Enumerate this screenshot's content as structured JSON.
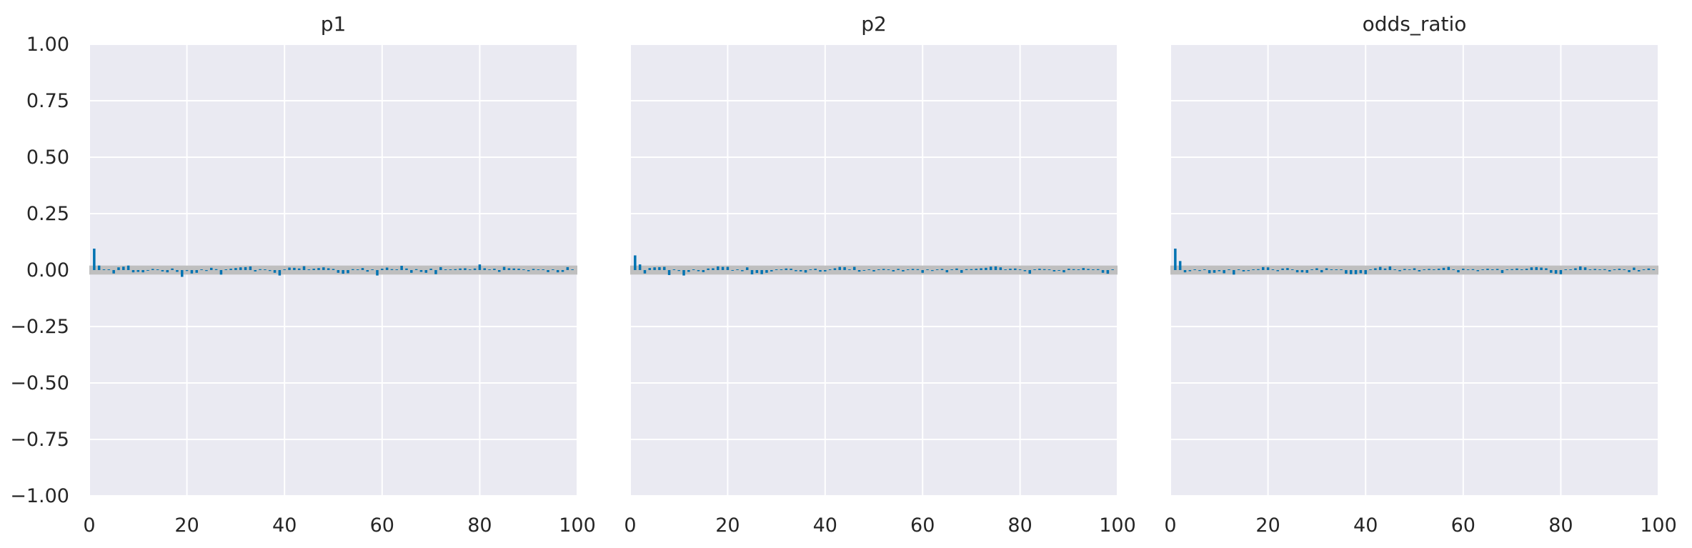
{
  "chart_data": [
    {
      "type": "bar",
      "title": "p1",
      "xlabel": "",
      "ylabel": "",
      "xlim": [
        0,
        100
      ],
      "ylim": [
        -1,
        1
      ],
      "band": [
        -0.02,
        0.02
      ],
      "x_ticks": [
        "0",
        "20",
        "40",
        "60",
        "80",
        "100"
      ],
      "y_ticks": [
        "1.00",
        "0.75",
        "0.50",
        "0.25",
        "0.00",
        "−0.25",
        "−0.50",
        "−0.75",
        "−1.00"
      ],
      "grid": true,
      "lags": [
        1,
        2,
        3,
        4,
        5,
        6,
        7,
        8,
        9,
        10,
        11,
        12,
        13,
        14,
        15,
        16,
        17,
        18,
        19,
        20,
        21,
        22,
        23,
        24,
        25,
        26,
        27,
        28,
        29,
        30,
        31,
        32,
        33,
        34,
        35,
        36,
        37,
        38,
        39,
        40,
        41,
        42,
        43,
        44,
        45,
        46,
        47,
        48,
        49,
        50,
        51,
        52,
        53,
        54,
        55,
        56,
        57,
        58,
        59,
        60,
        61,
        62,
        63,
        64,
        65,
        66,
        67,
        68,
        69,
        70,
        71,
        72,
        73,
        74,
        75,
        76,
        77,
        78,
        79,
        80,
        81,
        82,
        83,
        84,
        85,
        86,
        87,
        88,
        89,
        90,
        91,
        92,
        93,
        94,
        95,
        96,
        97,
        98,
        99
      ],
      "values": [
        0.095,
        0.02,
        0.0,
        0.0,
        -0.015,
        0.012,
        0.015,
        0.02,
        -0.01,
        -0.008,
        -0.01,
        -0.002,
        0.005,
        0.0,
        -0.006,
        -0.01,
        0.007,
        -0.008,
        -0.03,
        -0.004,
        -0.015,
        -0.012,
        0.0,
        -0.004,
        0.01,
        0.004,
        -0.02,
        0.0,
        0.006,
        0.009,
        0.012,
        0.013,
        0.016,
        -0.006,
        0.004,
        0.0,
        -0.004,
        -0.012,
        -0.024,
        0.0,
        0.011,
        0.01,
        0.007,
        0.017,
        0.0,
        0.006,
        0.009,
        0.012,
        0.008,
        0.005,
        -0.012,
        -0.016,
        -0.014,
        0.004,
        0.0,
        0.009,
        -0.007,
        0.0,
        -0.024,
        0.006,
        0.011,
        0.004,
        0.0,
        0.019,
        0.007,
        -0.012,
        0.004,
        -0.008,
        -0.012,
        0.006,
        -0.018,
        0.013,
        0.0,
        0.002,
        0.004,
        0.007,
        0.008,
        0.0,
        0.007,
        0.025,
        0.008,
        0.0,
        0.006,
        -0.008,
        0.014,
        0.008,
        0.007,
        0.006,
        0.0,
        -0.005,
        0.005,
        0.0,
        0.002,
        -0.009,
        0.003,
        -0.01,
        -0.008,
        0.013,
        0.0
      ]
    },
    {
      "type": "bar",
      "title": "p2",
      "xlabel": "",
      "ylabel": "",
      "xlim": [
        0,
        100
      ],
      "ylim": [
        -1,
        1
      ],
      "band": [
        -0.02,
        0.02
      ],
      "x_ticks": [
        "0",
        "20",
        "40",
        "60",
        "80",
        "100"
      ],
      "y_ticks": [],
      "grid": true,
      "lags": [
        1,
        2,
        3,
        4,
        5,
        6,
        7,
        8,
        9,
        10,
        11,
        12,
        13,
        14,
        15,
        16,
        17,
        18,
        19,
        20,
        21,
        22,
        23,
        24,
        25,
        26,
        27,
        28,
        29,
        30,
        31,
        32,
        33,
        34,
        35,
        36,
        37,
        38,
        39,
        40,
        41,
        42,
        43,
        44,
        45,
        46,
        47,
        48,
        49,
        50,
        51,
        52,
        53,
        54,
        55,
        56,
        57,
        58,
        59,
        60,
        61,
        62,
        63,
        64,
        65,
        66,
        67,
        68,
        69,
        70,
        71,
        72,
        73,
        74,
        75,
        76,
        77,
        78,
        79,
        80,
        81,
        82,
        83,
        84,
        85,
        86,
        87,
        88,
        89,
        90,
        91,
        92,
        93,
        94,
        95,
        96,
        97,
        98,
        99
      ],
      "values": [
        0.065,
        0.025,
        -0.015,
        0.009,
        0.012,
        0.013,
        0.014,
        -0.022,
        0.0,
        -0.004,
        -0.024,
        -0.008,
        0.0,
        -0.005,
        -0.009,
        0.007,
        0.008,
        0.016,
        0.014,
        0.014,
        -0.003,
        0.0,
        -0.005,
        0.012,
        -0.019,
        -0.013,
        -0.018,
        -0.012,
        -0.006,
        0.0,
        0.003,
        0.007,
        0.006,
        -0.005,
        -0.006,
        -0.011,
        0.0,
        0.006,
        -0.007,
        -0.006,
        0.0,
        0.008,
        0.014,
        0.013,
        0.0,
        0.014,
        -0.007,
        -0.003,
        0.0,
        -0.006,
        0.003,
        0.005,
        0.0,
        -0.006,
        0.005,
        -0.006,
        0.0,
        0.005,
        0.004,
        -0.012,
        0.0,
        -0.004,
        0.0,
        0.005,
        -0.01,
        0.0,
        0.007,
        -0.012,
        0.004,
        0.004,
        0.006,
        0.008,
        0.01,
        0.015,
        0.016,
        0.012,
        0.0,
        0.006,
        0.007,
        0.0,
        -0.005,
        -0.016,
        0.0,
        0.006,
        0.004,
        0.0,
        -0.006,
        -0.002,
        -0.01,
        0.006,
        0.004,
        0.0,
        0.009,
        0.005,
        0.002,
        0.004,
        -0.012,
        -0.016,
        0.0
      ]
    },
    {
      "type": "bar",
      "title": "odds_ratio",
      "xlabel": "",
      "ylabel": "",
      "xlim": [
        0,
        100
      ],
      "ylim": [
        -1,
        1
      ],
      "band": [
        -0.02,
        0.02
      ],
      "x_ticks": [
        "0",
        "20",
        "40",
        "60",
        "80",
        "100"
      ],
      "y_ticks": [],
      "grid": true,
      "lags": [
        1,
        2,
        3,
        4,
        5,
        6,
        7,
        8,
        9,
        10,
        11,
        12,
        13,
        14,
        15,
        16,
        17,
        18,
        19,
        20,
        21,
        22,
        23,
        24,
        25,
        26,
        27,
        28,
        29,
        30,
        31,
        32,
        33,
        34,
        35,
        36,
        37,
        38,
        39,
        40,
        41,
        42,
        43,
        44,
        45,
        46,
        47,
        48,
        49,
        50,
        51,
        52,
        53,
        54,
        55,
        56,
        57,
        58,
        59,
        60,
        61,
        62,
        63,
        64,
        65,
        66,
        67,
        68,
        69,
        70,
        71,
        72,
        73,
        74,
        75,
        76,
        77,
        78,
        79,
        80,
        81,
        82,
        83,
        84,
        85,
        86,
        87,
        88,
        89,
        90,
        91,
        92,
        93,
        94,
        95,
        96,
        97,
        98,
        99
      ],
      "values": [
        0.095,
        0.04,
        -0.01,
        -0.005,
        0.0,
        -0.004,
        0.0,
        -0.014,
        -0.012,
        -0.005,
        -0.014,
        0.0,
        -0.02,
        0.0,
        -0.006,
        -0.004,
        0.0,
        0.004,
        0.013,
        0.012,
        0.0,
        -0.005,
        0.007,
        0.009,
        0.0,
        -0.01,
        -0.01,
        -0.012,
        0.0,
        0.008,
        -0.01,
        0.008,
        0.0,
        0.0,
        0.0,
        -0.016,
        -0.018,
        -0.018,
        -0.014,
        -0.018,
        0.0,
        0.008,
        0.014,
        0.007,
        0.016,
        0.0,
        -0.005,
        0.005,
        0.0,
        0.008,
        -0.006,
        0.0,
        0.005,
        0.0,
        0.006,
        0.01,
        0.014,
        0.0,
        -0.01,
        0.006,
        0.0,
        0.004,
        -0.005,
        0.0,
        0.006,
        0.0,
        0.005,
        -0.013,
        0.0,
        0.004,
        0.007,
        0.0,
        0.006,
        0.012,
        0.013,
        0.011,
        0.008,
        -0.012,
        -0.016,
        -0.018,
        0.0,
        0.0,
        0.008,
        0.016,
        0.012,
        0.0,
        0.005,
        0.0,
        0.004,
        -0.006,
        0.0,
        0.006,
        0.0,
        -0.009,
        0.011,
        -0.006,
        0.0,
        0.007,
        0.0
      ]
    }
  ],
  "colors": {
    "axes_bg": "#eaeaf2",
    "grid": "#ffffff",
    "bar": "#0173b2",
    "band": "#bfbfbf",
    "text": "#262626"
  }
}
